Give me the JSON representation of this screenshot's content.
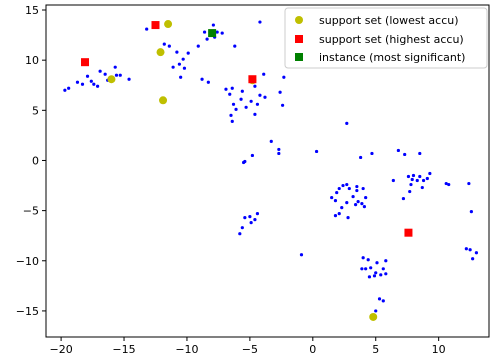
{
  "chart_data": {
    "type": "scatter",
    "title": "",
    "xlabel": "",
    "ylabel": "",
    "xlim": [
      -21.2,
      14.0
    ],
    "ylim": [
      -17.6,
      15.5
    ],
    "xticks": [
      -20,
      -15,
      -10,
      -5,
      0,
      5,
      10
    ],
    "yticks": [
      -15,
      -10,
      -5,
      0,
      5,
      10,
      15
    ],
    "xtick_labels": [
      "−20",
      "−15",
      "−10",
      "−5",
      "0",
      "5",
      "10"
    ],
    "ytick_labels": [
      "−15",
      "−10",
      "−5",
      "0",
      "5",
      "10",
      "15"
    ],
    "grid": false,
    "legend_placement": "top-right",
    "colors": {
      "background_points": "#0000ff",
      "support_lowest": "#bfbf00",
      "support_highest": "#ff0000",
      "instance": "#008000"
    },
    "background_points": [
      [
        -19.7,
        7.0
      ],
      [
        -19.4,
        7.2
      ],
      [
        -18.7,
        7.8
      ],
      [
        -18.3,
        7.6
      ],
      [
        -17.9,
        8.4
      ],
      [
        -17.6,
        7.9
      ],
      [
        -17.4,
        7.6
      ],
      [
        -17.1,
        7.4
      ],
      [
        -16.9,
        8.9
      ],
      [
        -16.5,
        8.6
      ],
      [
        -16.3,
        8.0
      ],
      [
        -15.6,
        8.5
      ],
      [
        -15.3,
        8.5
      ],
      [
        -15.7,
        9.3
      ],
      [
        -14.6,
        8.1
      ],
      [
        -13.2,
        13.1
      ],
      [
        -12.1,
        10.6
      ],
      [
        -11.8,
        11.6
      ],
      [
        -11.4,
        11.4
      ],
      [
        -11.1,
        9.3
      ],
      [
        -10.8,
        10.8
      ],
      [
        -10.6,
        9.6
      ],
      [
        -10.3,
        10.1
      ],
      [
        -10.5,
        8.3
      ],
      [
        -10.2,
        9.2
      ],
      [
        -9.9,
        10.7
      ],
      [
        -9.1,
        11.4
      ],
      [
        -8.6,
        12.8
      ],
      [
        -8.8,
        8.1
      ],
      [
        -8.3,
        7.8
      ],
      [
        -8.4,
        12.1
      ],
      [
        -7.6,
        12.8
      ],
      [
        -7.9,
        13.5
      ],
      [
        -7.8,
        12.3
      ],
      [
        -7.2,
        12.7
      ],
      [
        -6.2,
        11.4
      ],
      [
        -4.2,
        13.8
      ],
      [
        -6.9,
        7.1
      ],
      [
        -6.6,
        6.6
      ],
      [
        -6.4,
        7.2
      ],
      [
        -6.3,
        5.6
      ],
      [
        -6.1,
        5.1
      ],
      [
        -6.5,
        4.5
      ],
      [
        -6.4,
        3.9
      ],
      [
        -5.7,
        6.1
      ],
      [
        -5.6,
        6.9
      ],
      [
        -5.3,
        5.3
      ],
      [
        -4.9,
        5.9
      ],
      [
        -4.6,
        7.4
      ],
      [
        -4.2,
        6.5
      ],
      [
        -4.4,
        5.6
      ],
      [
        -4.6,
        4.6
      ],
      [
        -3.8,
        6.3
      ],
      [
        -3.9,
        8.6
      ],
      [
        -2.6,
        6.8
      ],
      [
        -2.4,
        5.5
      ],
      [
        -2.3,
        8.3
      ],
      [
        -3.3,
        1.9
      ],
      [
        -2.7,
        1.1
      ],
      [
        -2.7,
        0.7
      ],
      [
        -5.4,
        -0.1
      ],
      [
        -5.5,
        -0.2
      ],
      [
        -4.8,
        0.5
      ],
      [
        -5.4,
        -5.7
      ],
      [
        -5.0,
        -5.6
      ],
      [
        -4.9,
        -6.2
      ],
      [
        -4.6,
        -5.9
      ],
      [
        -4.4,
        -5.3
      ],
      [
        -5.6,
        -6.7
      ],
      [
        -5.8,
        -7.3
      ],
      [
        -0.9,
        -9.4
      ],
      [
        0.3,
        0.9
      ],
      [
        2.7,
        3.7
      ],
      [
        1.5,
        -3.7
      ],
      [
        1.8,
        -4.0
      ],
      [
        1.9,
        -3.2
      ],
      [
        2.1,
        -2.8
      ],
      [
        2.4,
        -2.5
      ],
      [
        2.7,
        -2.4
      ],
      [
        2.9,
        -2.8
      ],
      [
        3.2,
        -3.6
      ],
      [
        3.5,
        -3.0
      ],
      [
        3.6,
        -4.1
      ],
      [
        3.4,
        -4.4
      ],
      [
        3.9,
        -4.3
      ],
      [
        4.2,
        -3.7
      ],
      [
        4.1,
        -4.6
      ],
      [
        2.7,
        -4.2
      ],
      [
        2.3,
        -4.7
      ],
      [
        2.1,
        -5.3
      ],
      [
        2.8,
        -5.7
      ],
      [
        1.8,
        -5.5
      ],
      [
        3.5,
        -2.6
      ],
      [
        4.0,
        -2.8
      ],
      [
        3.8,
        0.3
      ],
      [
        4.7,
        0.7
      ],
      [
        6.4,
        -2.0
      ],
      [
        6.8,
        1.0
      ],
      [
        7.3,
        0.6
      ],
      [
        7.6,
        -1.6
      ],
      [
        7.9,
        -1.9
      ],
      [
        8.0,
        -1.5
      ],
      [
        8.3,
        -2.0
      ],
      [
        8.5,
        -1.6
      ],
      [
        8.8,
        -2.0
      ],
      [
        9.1,
        -1.8
      ],
      [
        9.3,
        -1.3
      ],
      [
        8.7,
        -2.7
      ],
      [
        7.8,
        -2.4
      ],
      [
        7.7,
        -3.1
      ],
      [
        7.2,
        -3.8
      ],
      [
        8.5,
        0.7
      ],
      [
        10.6,
        -2.3
      ],
      [
        10.8,
        -2.4
      ],
      [
        12.4,
        -2.3
      ],
      [
        12.6,
        -5.1
      ],
      [
        12.2,
        -8.8
      ],
      [
        12.5,
        -8.9
      ],
      [
        12.7,
        -9.8
      ],
      [
        13.0,
        -9.2
      ],
      [
        4.0,
        -9.7
      ],
      [
        4.4,
        -9.9
      ],
      [
        4.2,
        -10.8
      ],
      [
        3.9,
        -10.8
      ],
      [
        4.6,
        -10.7
      ],
      [
        5.1,
        -10.2
      ],
      [
        5.0,
        -11.2
      ],
      [
        5.4,
        -11.4
      ],
      [
        5.8,
        -11.3
      ],
      [
        5.6,
        -10.8
      ],
      [
        5.8,
        -10.0
      ],
      [
        4.5,
        -11.6
      ],
      [
        4.9,
        -11.5
      ],
      [
        5.3,
        -13.8
      ],
      [
        5.6,
        -14.0
      ],
      [
        5.0,
        -15.0
      ]
    ],
    "support_lowest_points": [
      [
        -16.0,
        8.1
      ],
      [
        -12.1,
        10.8
      ],
      [
        -11.5,
        13.6
      ],
      [
        -11.9,
        6.0
      ],
      [
        -4.8,
        8.0
      ],
      [
        4.8,
        -15.6
      ]
    ],
    "support_highest_points": [
      [
        -18.1,
        9.8
      ],
      [
        -12.5,
        13.5
      ],
      [
        -4.8,
        8.1
      ],
      [
        7.6,
        -7.2
      ]
    ],
    "instance_points": [
      [
        -8.0,
        12.7
      ]
    ],
    "legend": [
      {
        "label": "support set (lowest accu)",
        "marker": "circle",
        "color": "#bfbf00"
      },
      {
        "label": "support set (highest accu)",
        "marker": "square",
        "color": "#ff0000"
      },
      {
        "label": "instance (most significant)",
        "marker": "square",
        "color": "#008000"
      }
    ]
  }
}
